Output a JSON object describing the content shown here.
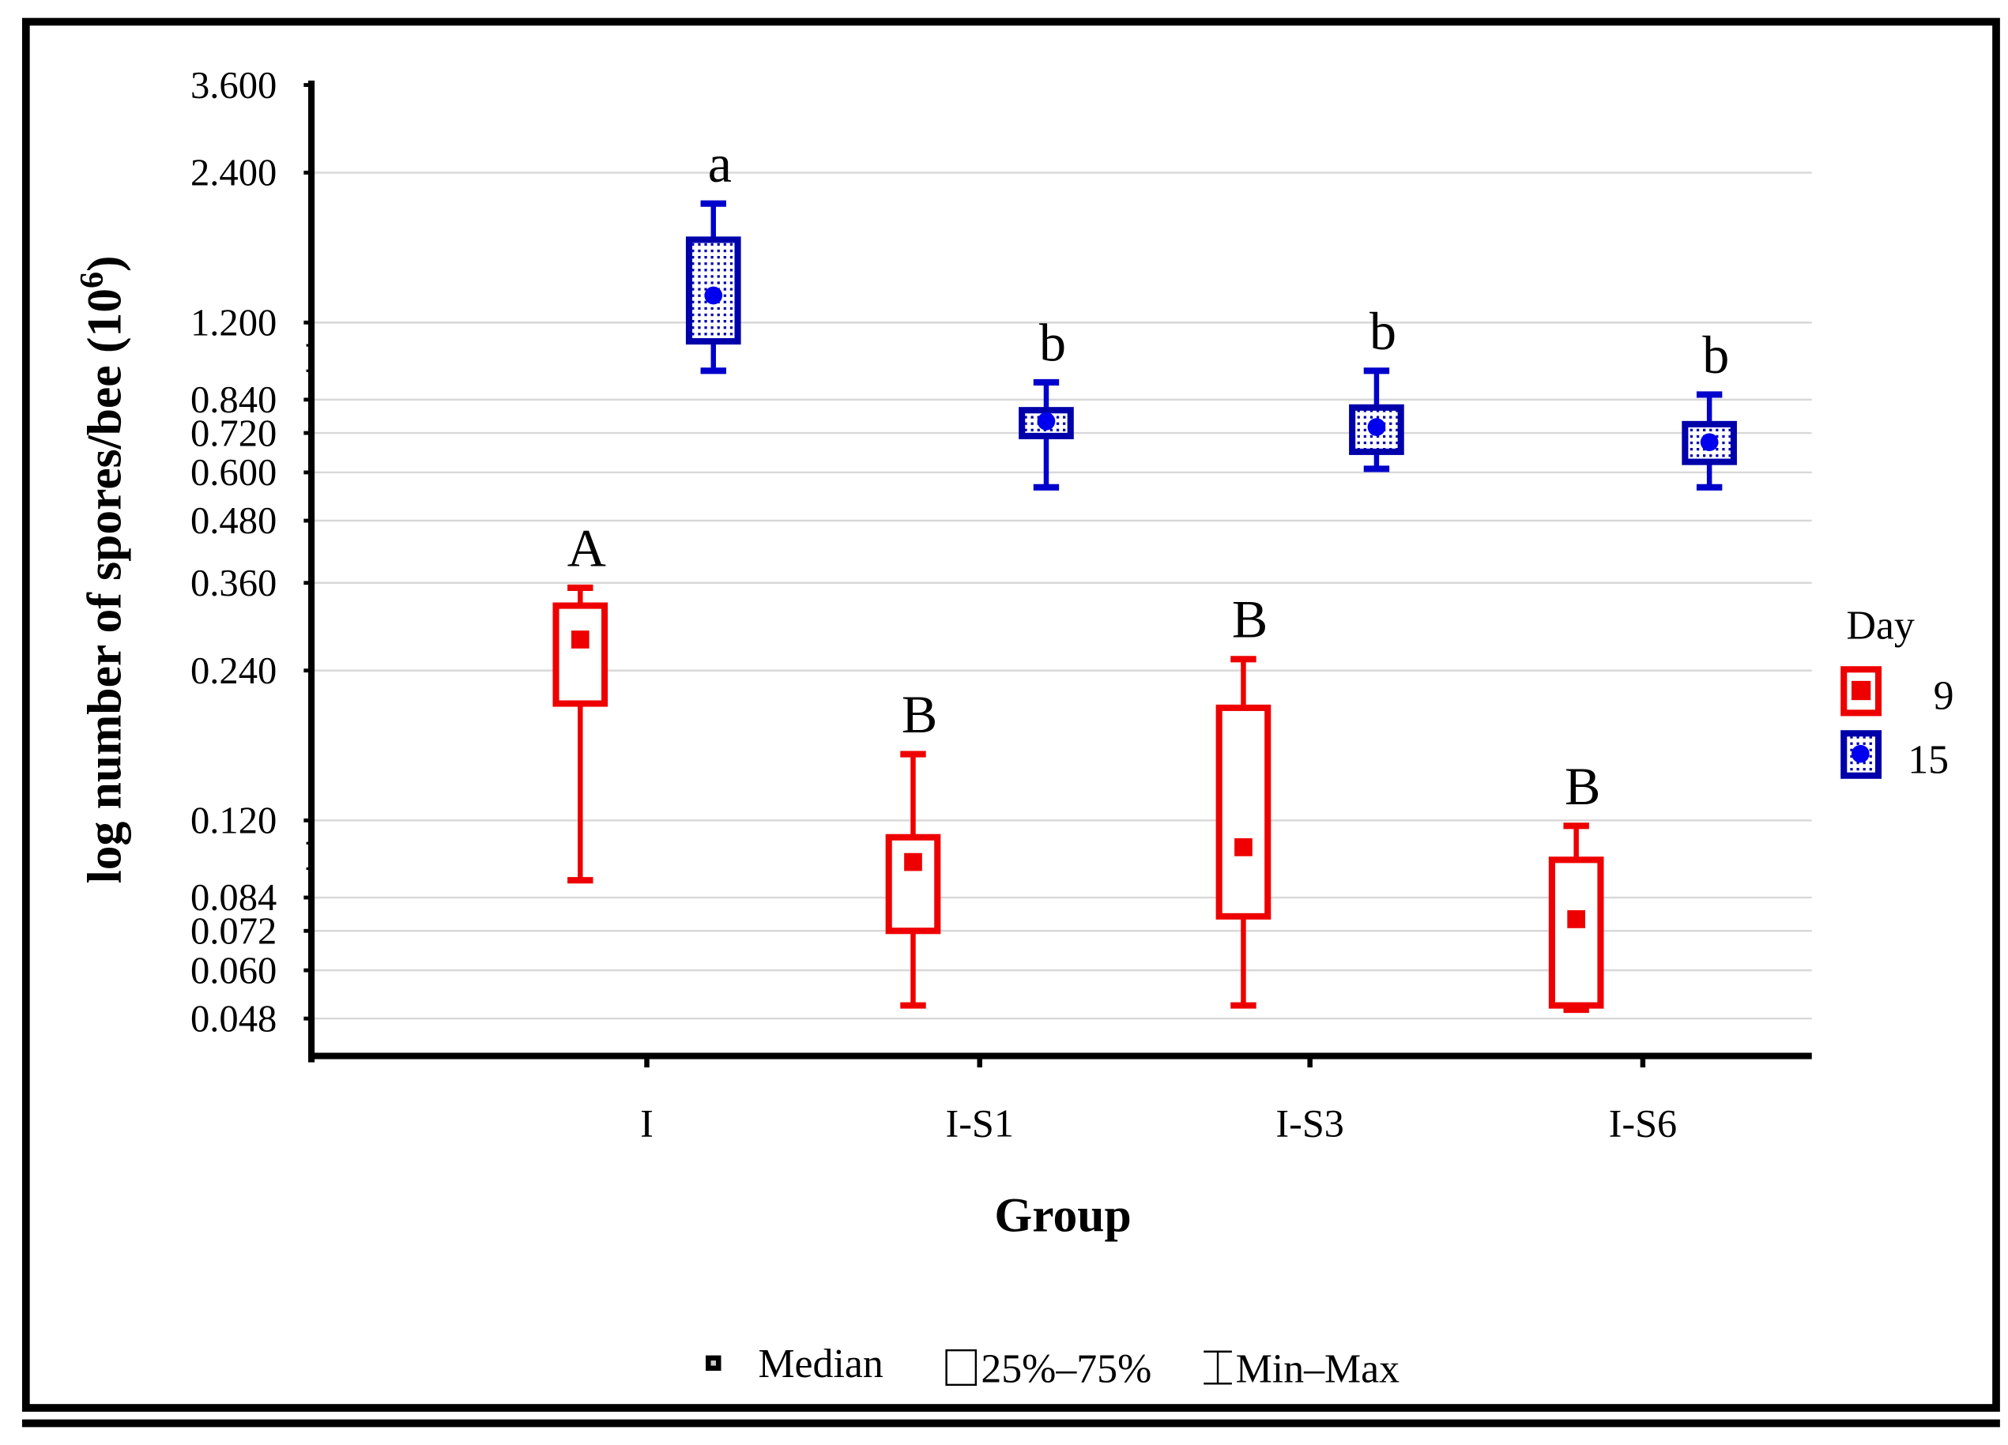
{
  "chart_data": {
    "type": "boxplot",
    "title": "",
    "xlabel": "Group",
    "ylabel": "log number of spores/bee (10",
    "ylabel_superscript": "6",
    "ylabel_close": ")",
    "yscale": "log",
    "ylim": [
      0.04,
      3.6
    ],
    "yticks": [
      "3.600",
      "2.400",
      "1.200",
      "0.840",
      "0.720",
      "0.600",
      "0.480",
      "0.360",
      "0.240",
      "0.120",
      "0.084",
      "0.072",
      "0.060",
      "0.048"
    ],
    "ytick_values": [
      3.6,
      2.4,
      1.2,
      0.84,
      0.72,
      0.6,
      0.48,
      0.36,
      0.24,
      0.12,
      0.084,
      0.072,
      0.06,
      0.048
    ],
    "grid": true,
    "categories": [
      "I",
      "I-S1",
      "I-S3",
      "I-S6"
    ],
    "legend": {
      "title": "Day",
      "placement": "right"
    },
    "series": [
      {
        "name": "9",
        "color": "#ee0000",
        "letters": [
          "A",
          "B",
          "B",
          "B"
        ],
        "min": [
          0.091,
          0.051,
          0.051,
          0.05
        ],
        "q1": [
          0.206,
          0.072,
          0.077,
          0.051
        ],
        "median": [
          0.277,
          0.099,
          0.106,
          0.076
        ],
        "q3": [
          0.324,
          0.111,
          0.202,
          0.1
        ],
        "max": [
          0.352,
          0.163,
          0.253,
          0.117
        ]
      },
      {
        "name": "15",
        "color": "#0000aa",
        "letters": [
          "a",
          "b",
          "b",
          "b"
        ],
        "min": [
          0.96,
          0.56,
          0.61,
          0.56
        ],
        "q1": [
          1.1,
          0.71,
          0.66,
          0.63
        ],
        "median": [
          1.36,
          0.76,
          0.74,
          0.69
        ],
        "q3": [
          1.76,
          0.8,
          0.81,
          0.75
        ],
        "max": [
          2.08,
          0.91,
          0.96,
          0.86
        ]
      }
    ],
    "stats_legend": {
      "median": "Median",
      "box": "25%–75%",
      "whisker": "Min–Max"
    }
  }
}
